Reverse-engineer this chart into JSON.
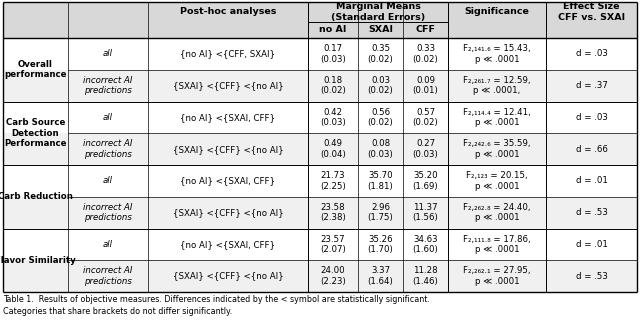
{
  "title_caption1": "Table 1.  Results of objective measures. Differences indicated by the < symbol are statistically significant.",
  "title_caption2": "Categories that share brackets do not differ significantly.",
  "col_headers": {
    "posthoc": "Post-hoc analyses",
    "marginal_main": "Marginal Means\n(Standard Errors)",
    "sub1": "no AI",
    "sub2": "SXAI",
    "sub3": "CFF",
    "sig": "Significance",
    "effect": "Effect Size\nCFF vs. SXAI"
  },
  "rows": [
    {
      "group": "Overall\nperformance",
      "subrows": [
        {
          "label": "all",
          "posthoc": "{no AI} <{CFF, SXAI}",
          "noAI": "0.17\n(0.03)",
          "SXAI": "0.35\n(0.02)",
          "CFF": "0.33\n(0.02)",
          "sig": "F₂,₁₄₁.₆ = 15.43,\np ≪ .0001",
          "effect": "d = .03"
        },
        {
          "label": "incorrect AI\npredictions",
          "posthoc": "{SXAI} <{CFF} <{no AI}",
          "noAI": "0.18\n(0.02)",
          "SXAI": "0.03\n(0.02)",
          "CFF": "0.09\n(0.01)",
          "sig": "F₂,₂₆₁.₇ = 12.59,\np ≪ .0001,",
          "effect": "d = .37"
        }
      ]
    },
    {
      "group": "Carb Source\nDetection\nPerformance",
      "subrows": [
        {
          "label": "all",
          "posthoc": "{no AI} <{SXAI, CFF}",
          "noAI": "0.42\n(0.03)",
          "SXAI": "0.56\n(0.02)",
          "CFF": "0.57\n(0.02)",
          "sig": "F₂,₁₁₄.₄ = 12.41,\np ≪ .0001",
          "effect": "d = .03"
        },
        {
          "label": "incorrect AI\npredictions",
          "posthoc": "{SXAI} <{CFF} <{no AI}",
          "noAI": "0.49\n(0.04)",
          "SXAI": "0.08\n(0.03)",
          "CFF": "0.27\n(0.03)",
          "sig": "F₂,₂₄₂.₆ = 35.59,\np ≪ .0001",
          "effect": "d = .66"
        }
      ]
    },
    {
      "group": "Carb Reduction",
      "subrows": [
        {
          "label": "all",
          "posthoc": "{no AI} <{SXAI, CFF}",
          "noAI": "21.73\n(2.25)",
          "SXAI": "35.70\n(1.81)",
          "CFF": "35.20\n(1.69)",
          "sig": "F₂,₁₂₃ = 20.15,\np ≪ .0001",
          "effect": "d = .01"
        },
        {
          "label": "incorrect AI\npredictions",
          "posthoc": "{SXAI} <{CFF} <{no AI}",
          "noAI": "23.58\n(2.38)",
          "SXAI": "2.96\n(1.75)",
          "CFF": "11.37\n(1.56)",
          "sig": "F₂,₂₆₂.₈ = 24.40,\np ≪ .0001",
          "effect": "d = .53"
        }
      ]
    },
    {
      "group": "Flavor Similarity",
      "subrows": [
        {
          "label": "all",
          "posthoc": "{no AI} <{SXAI, CFF}",
          "noAI": "23.57\n(2.07)",
          "SXAI": "35.26\n(1.70)",
          "CFF": "34.63\n(1.60)",
          "sig": "F₂,₁₁₁.₈ = 17.86,\np ≪ .0001",
          "effect": "d = .01"
        },
        {
          "label": "incorrect AI\npredictions",
          "posthoc": "{SXAI} <{CFF} <{no AI}",
          "noAI": "24.00\n(2.23)",
          "SXAI": "3.37\n(1.64)",
          "CFF": "11.28\n(1.46)",
          "sig": "F₂,₂₆₂.₁ = 27.95,\np ≪ .0001",
          "effect": "d = .53"
        }
      ]
    }
  ],
  "bg_color": "#ffffff",
  "text_color": "#000000",
  "header_bg": "#d8d8d8",
  "odd_row_bg": "#f0f0f0",
  "font_size": 6.2,
  "header_font_size": 6.8,
  "caption_font_size": 5.8
}
